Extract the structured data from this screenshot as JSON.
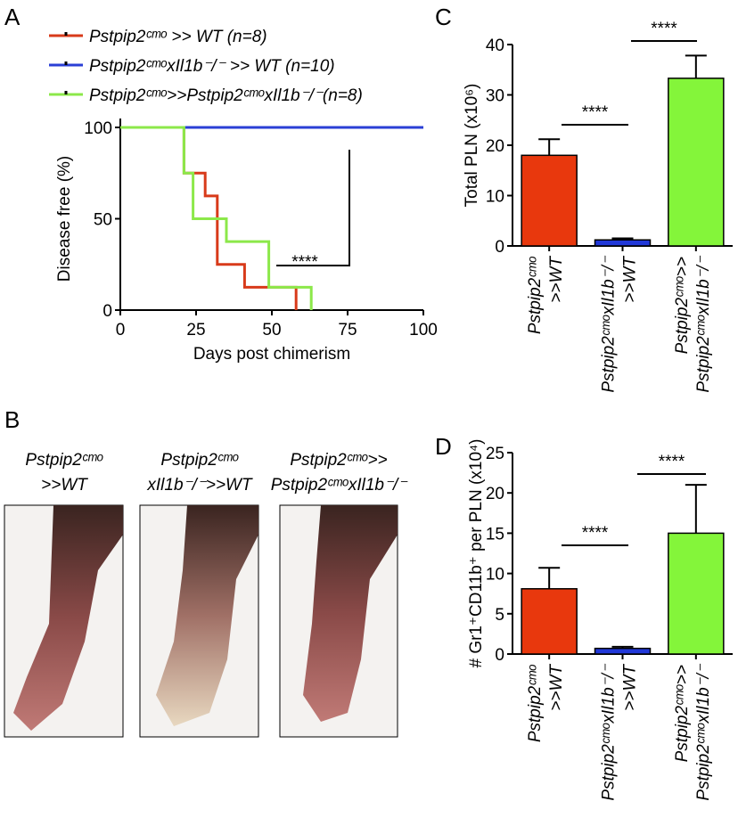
{
  "panels": [
    "A",
    "B",
    "C",
    "D"
  ],
  "chart_data": [
    {
      "type": "line",
      "step": true,
      "xlabel": "Days post chimerism",
      "ylabel": "Disease free (%)",
      "xlim": [
        0,
        100
      ],
      "xticks": [
        0,
        25,
        50,
        75,
        100
      ],
      "ylim": [
        0,
        100
      ],
      "yticks": [
        0,
        50,
        100
      ],
      "series": [
        {
          "name": "Pstpip2ᶜᵐᵒ >> WT (n=8)",
          "color": "#d83a1a",
          "x": [
            0,
            21,
            28,
            32,
            41,
            58
          ],
          "values": [
            100,
            75,
            62.5,
            25,
            12.5,
            0
          ]
        },
        {
          "name": "Pstpip2ᶜᵐᵒxIl1b⁻/⁻ >> WT (n=10)",
          "color": "#2a3fd6",
          "x": [
            0,
            100
          ],
          "values": [
            100,
            100
          ]
        },
        {
          "name": "Pstpip2ᶜᵐᵒ>>Pstpip2ᶜᵐᵒxIl1b⁻/⁻(n=8)",
          "color": "#8ce84a",
          "x": [
            0,
            21,
            24,
            35,
            49,
            63
          ],
          "values": [
            100,
            75,
            50,
            37.5,
            12.5,
            0
          ]
        }
      ],
      "annotations": [
        "****"
      ]
    },
    {
      "type": "bar",
      "ylabel": "Total PLN (x10⁶)",
      "ylim": [
        0,
        40
      ],
      "yticks": [
        0,
        10,
        20,
        30,
        40
      ],
      "categories": [
        [
          "Pstpip2ᶜᵐᵒ",
          ">>WT"
        ],
        [
          "Pstpip2ᶜᵐᵒxIl1b⁻/⁻",
          ">>WT"
        ],
        [
          "Pstpip2ᶜᵐᵒ>>",
          "Pstpip2ᶜᵐᵒxIl1b⁻/⁻"
        ]
      ],
      "values": [
        18,
        1.2,
        33.3
      ],
      "errors": [
        3.2,
        0.3,
        4.5
      ],
      "colors": [
        "#e8380d",
        "#2138d8",
        "#84f53a"
      ],
      "annotations": [
        "****",
        "****"
      ]
    },
    {
      "type": "bar",
      "ylabel": "# Gr1⁺CD11b⁺ per PLN (x10⁴)",
      "ylim": [
        0,
        25
      ],
      "yticks": [
        0,
        5,
        10,
        15,
        20,
        25
      ],
      "categories": [
        [
          "Pstpip2ᶜᵐᵒ",
          ">>WT"
        ],
        [
          "Pstpip2ᶜᵐᵒxIl1b⁻/⁻",
          ">>WT"
        ],
        [
          "Pstpip2ᶜᵐᵒ>>",
          "Pstpip2ᶜᵐᵒxIl1b⁻/⁻"
        ]
      ],
      "values": [
        8.1,
        0.7,
        15
      ],
      "errors": [
        2.6,
        0.2,
        6
      ],
      "colors": [
        "#e8380d",
        "#2138d8",
        "#84f53a"
      ],
      "annotations": [
        "****",
        "****"
      ]
    }
  ],
  "photos": [
    [
      "Pstpip2ᶜᵐᵒ",
      ">>WT"
    ],
    [
      "Pstpip2ᶜᵐᵒ",
      "xIl1b⁻/⁻>>WT"
    ],
    [
      "Pstpip2ᶜᵐᵒ>>",
      "Pstpip2ᶜᵐᵒxIl1b⁻/⁻"
    ]
  ]
}
